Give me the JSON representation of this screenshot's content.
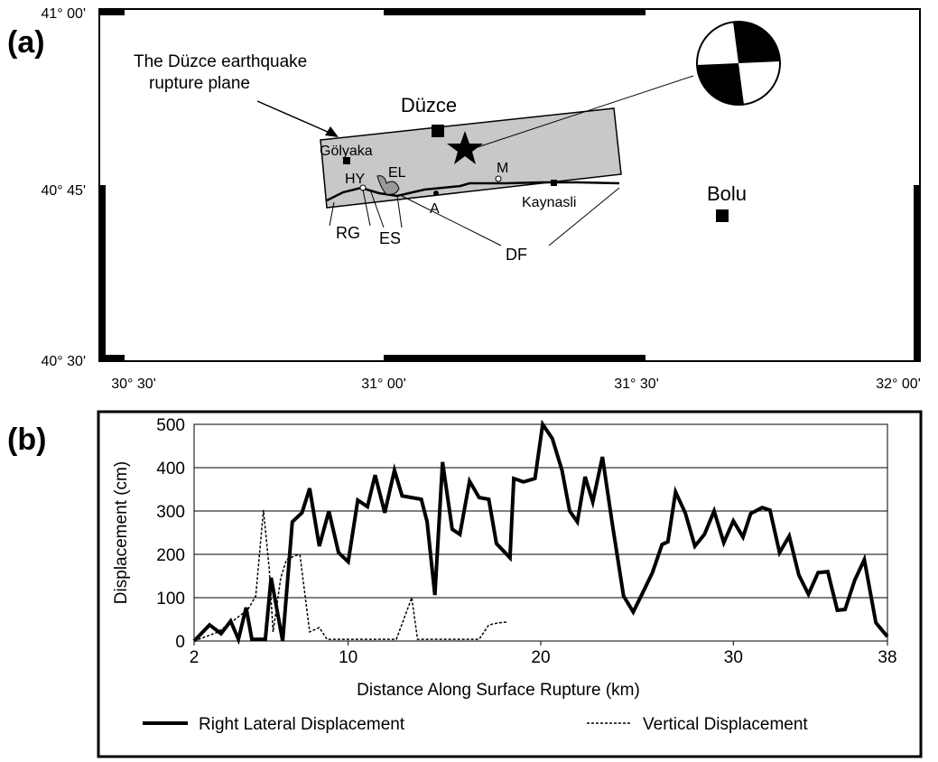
{
  "panel_a": {
    "label": "(a)",
    "lat_labels": [
      "41° 00'",
      "40° 45'",
      "40° 30'"
    ],
    "lon_labels": [
      "30° 30'",
      "31° 00'",
      "31° 30'",
      "32° 00'"
    ],
    "rupture_note": [
      "The Düzce earthquake",
      "rupture plane"
    ],
    "places": {
      "duzce": "Düzce",
      "golyaka": "Gölyaka",
      "hy": "HY",
      "el": "EL",
      "m": "M",
      "a": "A",
      "kaynasli": "Kaynasli",
      "bolu": "Bolu",
      "rg": "RG",
      "es": "ES",
      "df": "DF"
    }
  },
  "chart_data": {
    "type": "line",
    "label": "(b)",
    "y_label": "Displacement (cm)",
    "x_label": "Distance Along Surface Rupture (km)",
    "xlim": [
      2,
      38
    ],
    "xticks": [
      2,
      10,
      20,
      30,
      38
    ],
    "ylim": [
      0,
      500
    ],
    "yticks": [
      0,
      100,
      200,
      300,
      400,
      500
    ],
    "grid": true,
    "series": [
      {
        "name": "Right Lateral Displacement",
        "color": "#000000",
        "style": "solid",
        "x": [
          2.0,
          2.8,
          3.4,
          3.9,
          4.3,
          4.7,
          5.0,
          5.7,
          6.0,
          6.6,
          7.1,
          7.6,
          8.0,
          8.5,
          9.0,
          9.5,
          10.0,
          10.5,
          11.0,
          11.4,
          11.9,
          12.4,
          12.8,
          13.3,
          13.8,
          14.1,
          14.5,
          14.9,
          15.4,
          15.8,
          16.3,
          16.8,
          17.3,
          17.7,
          18.4,
          18.6,
          19.1,
          19.7,
          20.1,
          20.6,
          21.1,
          21.5,
          21.9,
          22.3,
          22.7,
          23.2,
          23.7,
          24.3,
          24.8,
          25.3,
          25.8,
          26.3,
          26.6,
          27.0,
          27.5,
          28.0,
          28.5,
          29.0,
          29.5,
          30.0,
          30.5,
          30.9,
          31.5,
          31.9,
          32.4,
          32.9,
          33.4,
          33.9,
          34.4,
          34.9,
          35.4,
          35.8,
          36.3,
          36.8,
          37.4,
          38.0
        ],
        "values": [
          0,
          37,
          17,
          46,
          4,
          77,
          4,
          4,
          146,
          0,
          275,
          296,
          352,
          219,
          300,
          204,
          183,
          325,
          310,
          383,
          296,
          394,
          335,
          331,
          327,
          275,
          106,
          413,
          258,
          246,
          369,
          331,
          327,
          225,
          192,
          375,
          367,
          375,
          500,
          467,
          394,
          300,
          275,
          379,
          321,
          425,
          275,
          104,
          67,
          112,
          158,
          223,
          229,
          344,
          296,
          219,
          246,
          300,
          227,
          277,
          240,
          294,
          308,
          302,
          204,
          242,
          152,
          108,
          158,
          160,
          71,
          73,
          140,
          188,
          42,
          10
        ]
      },
      {
        "name": "Vertical Displacement",
        "color": "#000000",
        "style": "dashed",
        "x": [
          2.0,
          3.2,
          3.9,
          4.8,
          5.2,
          5.6,
          5.9,
          6.1,
          6.5,
          6.8,
          7.3,
          7.5,
          8.0,
          8.5,
          8.9,
          12.5,
          13.3,
          13.6,
          16.8,
          17.3,
          17.8,
          18.3
        ],
        "values": [
          0,
          20,
          42,
          73,
          104,
          302,
          167,
          21,
          146,
          188,
          198,
          198,
          21,
          31,
          4,
          4,
          100,
          4,
          4,
          37,
          42,
          44
        ]
      }
    ]
  }
}
